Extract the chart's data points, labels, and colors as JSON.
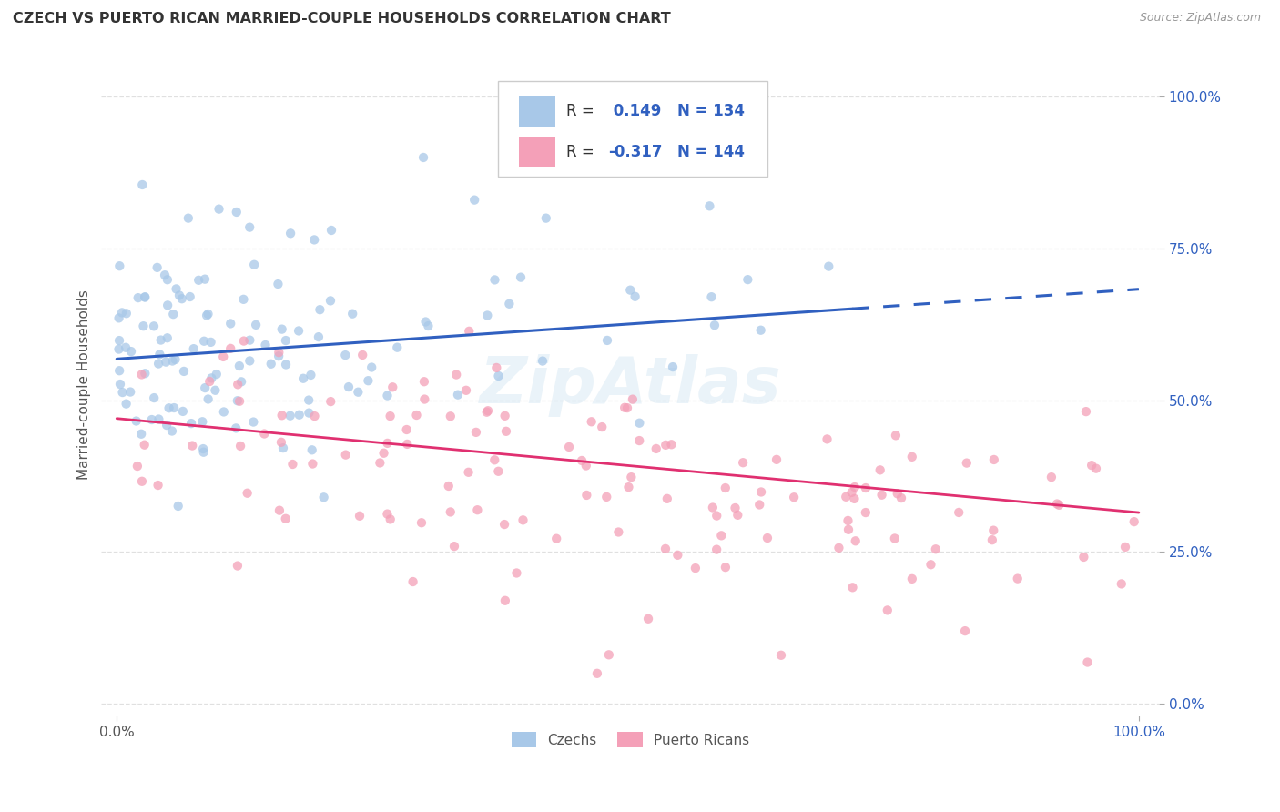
{
  "title": "CZECH VS PUERTO RICAN MARRIED-COUPLE HOUSEHOLDS CORRELATION CHART",
  "source": "Source: ZipAtlas.com",
  "ylabel": "Married-couple Households",
  "ytick_labels": [
    "0.0%",
    "25.0%",
    "50.0%",
    "75.0%",
    "100.0%"
  ],
  "ytick_positions": [
    0.0,
    0.25,
    0.5,
    0.75,
    1.0
  ],
  "xtick_labels_left": "0.0%",
  "xtick_labels_right": "100.0%",
  "legend_label1": "Czechs",
  "legend_label2": "Puerto Ricans",
  "color_blue": "#A8C8E8",
  "color_pink": "#F4A0B8",
  "color_blue_line": "#3060C0",
  "color_pink_line": "#E03070",
  "color_text_blue": "#3060C0",
  "background_color": "#FFFFFF",
  "grid_color": "#DDDDDD",
  "scatter_alpha": 0.75,
  "scatter_size": 55,
  "watermark_text": "ZipAtlas",
  "watermark_color": "#90C0E0",
  "watermark_alpha": 0.18,
  "legend_r1_prefix": "R = ",
  "legend_r1_value": " 0.149",
  "legend_n1_label": "N = 134",
  "legend_r2_prefix": "R = ",
  "legend_r2_value": "-0.317",
  "legend_n2_label": "N = 144"
}
